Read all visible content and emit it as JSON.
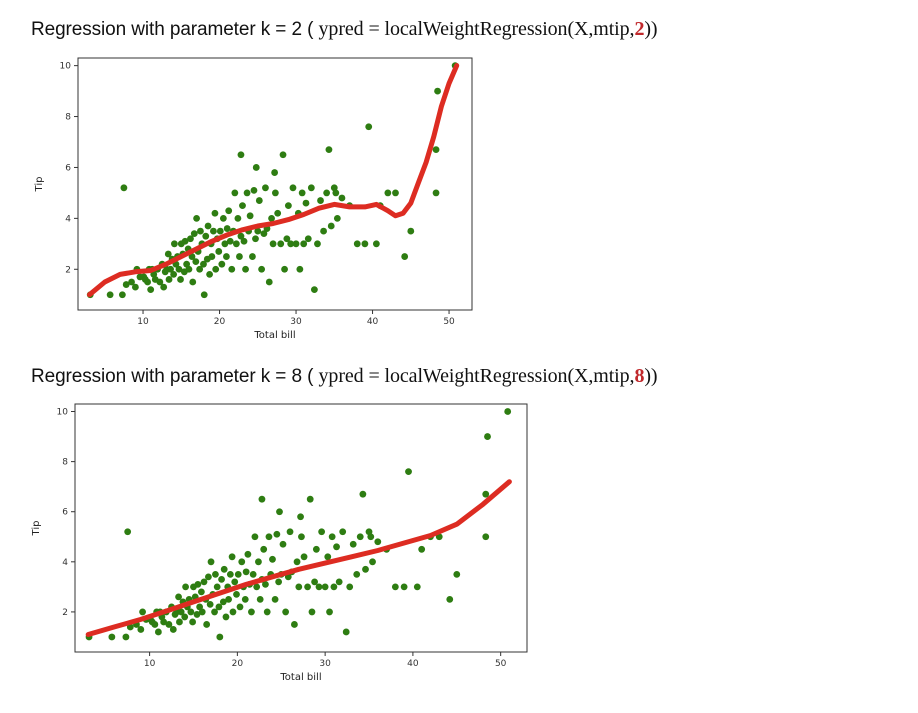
{
  "captions": [
    {
      "prefix": "Regression with parameter k = 2 ( ",
      "code_pre": "ypred = localWeightRegression(X,mtip,",
      "k": "2",
      "code_post": "))"
    },
    {
      "prefix": "Regression with parameter k = 8 ( ",
      "code_pre": "ypred = localWeightRegression(X,mtip,",
      "k": "8",
      "code_post": "))"
    }
  ],
  "colors": {
    "points": "#2e7d12",
    "curve": "#dd2c22",
    "axes": "#333333"
  },
  "chart_data": [
    {
      "type": "scatter",
      "title": "",
      "xlabel": "Total bill",
      "ylabel": "Tip",
      "xlim": [
        1.5,
        53
      ],
      "ylim": [
        0.4,
        10.3
      ],
      "xticks": [
        10,
        20,
        30,
        40,
        50
      ],
      "yticks": [
        2,
        4,
        6,
        8,
        10
      ],
      "grid": false,
      "points": [
        [
          3.1,
          1.0
        ],
        [
          5.7,
          1.0
        ],
        [
          7.3,
          1.0
        ],
        [
          7.5,
          5.2
        ],
        [
          7.8,
          1.4
        ],
        [
          8.5,
          1.5
        ],
        [
          9.0,
          1.3
        ],
        [
          9.2,
          2.0
        ],
        [
          9.6,
          1.7
        ],
        [
          10.1,
          1.7
        ],
        [
          10.3,
          1.6
        ],
        [
          10.6,
          1.5
        ],
        [
          10.8,
          2.0
        ],
        [
          11.0,
          1.2
        ],
        [
          11.2,
          2.0
        ],
        [
          11.4,
          1.8
        ],
        [
          11.6,
          1.6
        ],
        [
          11.9,
          2.0
        ],
        [
          12.2,
          1.5
        ],
        [
          12.5,
          2.2
        ],
        [
          12.7,
          1.3
        ],
        [
          12.9,
          1.9
        ],
        [
          13.1,
          2.0
        ],
        [
          13.3,
          2.6
        ],
        [
          13.4,
          1.6
        ],
        [
          13.6,
          2.0
        ],
        [
          13.8,
          2.4
        ],
        [
          14.0,
          1.8
        ],
        [
          14.1,
          3.0
        ],
        [
          14.3,
          2.2
        ],
        [
          14.5,
          2.5
        ],
        [
          14.7,
          2.0
        ],
        [
          14.9,
          1.6
        ],
        [
          15.0,
          3.0
        ],
        [
          15.2,
          2.6
        ],
        [
          15.4,
          1.9
        ],
        [
          15.5,
          3.1
        ],
        [
          15.7,
          2.2
        ],
        [
          15.9,
          2.8
        ],
        [
          16.0,
          2.0
        ],
        [
          16.2,
          3.2
        ],
        [
          16.4,
          2.5
        ],
        [
          16.5,
          1.5
        ],
        [
          16.7,
          3.4
        ],
        [
          16.9,
          2.3
        ],
        [
          17.0,
          4.0
        ],
        [
          17.2,
          2.7
        ],
        [
          17.4,
          2.0
        ],
        [
          17.5,
          3.5
        ],
        [
          17.7,
          3.0
        ],
        [
          17.9,
          2.2
        ],
        [
          18.0,
          1.0
        ],
        [
          18.2,
          3.3
        ],
        [
          18.4,
          2.4
        ],
        [
          18.5,
          3.7
        ],
        [
          18.7,
          1.8
        ],
        [
          18.9,
          3.0
        ],
        [
          19.0,
          2.5
        ],
        [
          19.2,
          3.5
        ],
        [
          19.4,
          4.2
        ],
        [
          19.5,
          2.0
        ],
        [
          19.7,
          3.2
        ],
        [
          19.9,
          2.7
        ],
        [
          20.1,
          3.5
        ],
        [
          20.3,
          2.2
        ],
        [
          20.5,
          4.0
        ],
        [
          20.7,
          3.0
        ],
        [
          20.9,
          2.5
        ],
        [
          21.0,
          3.6
        ],
        [
          21.2,
          4.3
        ],
        [
          21.4,
          3.1
        ],
        [
          21.6,
          2.0
        ],
        [
          21.8,
          3.5
        ],
        [
          22.0,
          5.0
        ],
        [
          22.2,
          3.0
        ],
        [
          22.4,
          4.0
        ],
        [
          22.6,
          2.5
        ],
        [
          22.8,
          3.3
        ],
        [
          23.0,
          4.5
        ],
        [
          23.2,
          3.1
        ],
        [
          23.4,
          2.0
        ],
        [
          23.6,
          5.0
        ],
        [
          23.8,
          3.5
        ],
        [
          24.0,
          4.1
        ],
        [
          24.3,
          2.5
        ],
        [
          24.5,
          5.1
        ],
        [
          24.7,
          3.2
        ],
        [
          25.0,
          3.5
        ],
        [
          25.2,
          4.7
        ],
        [
          25.5,
          2.0
        ],
        [
          25.8,
          3.4
        ],
        [
          26.0,
          5.2
        ],
        [
          26.2,
          3.6
        ],
        [
          26.5,
          1.5
        ],
        [
          26.8,
          4.0
        ],
        [
          27.0,
          3.0
        ],
        [
          27.3,
          5.0
        ],
        [
          27.6,
          4.2
        ],
        [
          28.0,
          3.0
        ],
        [
          28.3,
          6.5
        ],
        [
          28.5,
          2.0
        ],
        [
          28.8,
          3.2
        ],
        [
          29.0,
          4.5
        ],
        [
          29.3,
          3.0
        ],
        [
          29.6,
          5.2
        ],
        [
          30.0,
          3.0
        ],
        [
          30.3,
          4.2
        ],
        [
          30.5,
          2.0
        ],
        [
          30.8,
          5.0
        ],
        [
          31.0,
          3.0
        ],
        [
          31.3,
          4.6
        ],
        [
          31.6,
          3.2
        ],
        [
          32.0,
          5.2
        ],
        [
          32.4,
          1.2
        ],
        [
          32.8,
          3.0
        ],
        [
          33.2,
          4.7
        ],
        [
          33.6,
          3.5
        ],
        [
          34.0,
          5.0
        ],
        [
          34.3,
          6.7
        ],
        [
          34.6,
          3.7
        ],
        [
          35.0,
          5.2
        ],
        [
          35.4,
          4.0
        ],
        [
          36.0,
          4.8
        ],
        [
          37.0,
          4.5
        ],
        [
          38.0,
          3.0
        ],
        [
          39.0,
          3.0
        ],
        [
          39.5,
          7.6
        ],
        [
          40.5,
          3.0
        ],
        [
          41.0,
          4.5
        ],
        [
          42.0,
          5.0
        ],
        [
          43.0,
          5.0
        ],
        [
          44.2,
          2.5
        ],
        [
          45.0,
          3.5
        ],
        [
          48.3,
          6.7
        ],
        [
          48.3,
          5.0
        ],
        [
          48.5,
          9.0
        ],
        [
          50.8,
          10.0
        ],
        [
          24.8,
          6.0
        ],
        [
          22.8,
          6.5
        ],
        [
          27.2,
          5.8
        ],
        [
          35.2,
          5.0
        ]
      ],
      "curve": [
        [
          3,
          1.0
        ],
        [
          5,
          1.5
        ],
        [
          7,
          1.8
        ],
        [
          9,
          1.9
        ],
        [
          11,
          1.95
        ],
        [
          13,
          2.2
        ],
        [
          15,
          2.5
        ],
        [
          17,
          2.8
        ],
        [
          19,
          3.1
        ],
        [
          21,
          3.35
        ],
        [
          23,
          3.55
        ],
        [
          25,
          3.7
        ],
        [
          27,
          3.8
        ],
        [
          29,
          3.95
        ],
        [
          31,
          4.15
        ],
        [
          33,
          4.4
        ],
        [
          35,
          4.55
        ],
        [
          37,
          4.45
        ],
        [
          39,
          4.45
        ],
        [
          40.5,
          4.55
        ],
        [
          42,
          4.3
        ],
        [
          43,
          4.1
        ],
        [
          44,
          4.2
        ],
        [
          45,
          4.6
        ],
        [
          46,
          5.4
        ],
        [
          47,
          6.2
        ],
        [
          48,
          7.2
        ],
        [
          49,
          8.4
        ],
        [
          50,
          9.3
        ],
        [
          51,
          10.0
        ]
      ]
    },
    {
      "type": "scatter",
      "title": "",
      "xlabel": "Total bill",
      "ylabel": "Tip",
      "xlim": [
        1.5,
        53
      ],
      "ylim": [
        0.4,
        10.3
      ],
      "xticks": [
        10,
        20,
        30,
        40,
        50
      ],
      "yticks": [
        2,
        4,
        6,
        8,
        10
      ],
      "grid": false,
      "points": [
        [
          3.1,
          1.0
        ],
        [
          5.7,
          1.0
        ],
        [
          7.3,
          1.0
        ],
        [
          7.5,
          5.2
        ],
        [
          7.8,
          1.4
        ],
        [
          8.5,
          1.5
        ],
        [
          9.0,
          1.3
        ],
        [
          9.2,
          2.0
        ],
        [
          9.6,
          1.7
        ],
        [
          10.1,
          1.7
        ],
        [
          10.3,
          1.6
        ],
        [
          10.6,
          1.5
        ],
        [
          10.8,
          2.0
        ],
        [
          11.0,
          1.2
        ],
        [
          11.2,
          2.0
        ],
        [
          11.4,
          1.8
        ],
        [
          11.6,
          1.6
        ],
        [
          11.9,
          2.0
        ],
        [
          12.2,
          1.5
        ],
        [
          12.5,
          2.2
        ],
        [
          12.7,
          1.3
        ],
        [
          12.9,
          1.9
        ],
        [
          13.1,
          2.0
        ],
        [
          13.3,
          2.6
        ],
        [
          13.4,
          1.6
        ],
        [
          13.6,
          2.0
        ],
        [
          13.8,
          2.4
        ],
        [
          14.0,
          1.8
        ],
        [
          14.1,
          3.0
        ],
        [
          14.3,
          2.2
        ],
        [
          14.5,
          2.5
        ],
        [
          14.7,
          2.0
        ],
        [
          14.9,
          1.6
        ],
        [
          15.0,
          3.0
        ],
        [
          15.2,
          2.6
        ],
        [
          15.4,
          1.9
        ],
        [
          15.5,
          3.1
        ],
        [
          15.7,
          2.2
        ],
        [
          15.9,
          2.8
        ],
        [
          16.0,
          2.0
        ],
        [
          16.2,
          3.2
        ],
        [
          16.4,
          2.5
        ],
        [
          16.5,
          1.5
        ],
        [
          16.7,
          3.4
        ],
        [
          16.9,
          2.3
        ],
        [
          17.0,
          4.0
        ],
        [
          17.2,
          2.7
        ],
        [
          17.4,
          2.0
        ],
        [
          17.5,
          3.5
        ],
        [
          17.7,
          3.0
        ],
        [
          17.9,
          2.2
        ],
        [
          18.0,
          1.0
        ],
        [
          18.2,
          3.3
        ],
        [
          18.4,
          2.4
        ],
        [
          18.5,
          3.7
        ],
        [
          18.7,
          1.8
        ],
        [
          18.9,
          3.0
        ],
        [
          19.0,
          2.5
        ],
        [
          19.2,
          3.5
        ],
        [
          19.4,
          4.2
        ],
        [
          19.5,
          2.0
        ],
        [
          19.7,
          3.2
        ],
        [
          19.9,
          2.7
        ],
        [
          20.1,
          3.5
        ],
        [
          20.3,
          2.2
        ],
        [
          20.5,
          4.0
        ],
        [
          20.7,
          3.0
        ],
        [
          20.9,
          2.5
        ],
        [
          21.0,
          3.6
        ],
        [
          21.2,
          4.3
        ],
        [
          21.4,
          3.1
        ],
        [
          21.6,
          2.0
        ],
        [
          21.8,
          3.5
        ],
        [
          22.0,
          5.0
        ],
        [
          22.2,
          3.0
        ],
        [
          22.4,
          4.0
        ],
        [
          22.6,
          2.5
        ],
        [
          22.8,
          3.3
        ],
        [
          23.0,
          4.5
        ],
        [
          23.2,
          3.1
        ],
        [
          23.4,
          2.0
        ],
        [
          23.6,
          5.0
        ],
        [
          23.8,
          3.5
        ],
        [
          24.0,
          4.1
        ],
        [
          24.3,
          2.5
        ],
        [
          24.5,
          5.1
        ],
        [
          24.7,
          3.2
        ],
        [
          25.0,
          3.5
        ],
        [
          25.2,
          4.7
        ],
        [
          25.5,
          2.0
        ],
        [
          25.8,
          3.4
        ],
        [
          26.0,
          5.2
        ],
        [
          26.2,
          3.6
        ],
        [
          26.5,
          1.5
        ],
        [
          26.8,
          4.0
        ],
        [
          27.0,
          3.0
        ],
        [
          27.3,
          5.0
        ],
        [
          27.6,
          4.2
        ],
        [
          28.0,
          3.0
        ],
        [
          28.3,
          6.5
        ],
        [
          28.5,
          2.0
        ],
        [
          28.8,
          3.2
        ],
        [
          29.0,
          4.5
        ],
        [
          29.3,
          3.0
        ],
        [
          29.6,
          5.2
        ],
        [
          30.0,
          3.0
        ],
        [
          30.3,
          4.2
        ],
        [
          30.5,
          2.0
        ],
        [
          30.8,
          5.0
        ],
        [
          31.0,
          3.0
        ],
        [
          31.3,
          4.6
        ],
        [
          31.6,
          3.2
        ],
        [
          32.0,
          5.2
        ],
        [
          32.4,
          1.2
        ],
        [
          32.8,
          3.0
        ],
        [
          33.2,
          4.7
        ],
        [
          33.6,
          3.5
        ],
        [
          34.0,
          5.0
        ],
        [
          34.3,
          6.7
        ],
        [
          34.6,
          3.7
        ],
        [
          35.0,
          5.2
        ],
        [
          35.4,
          4.0
        ],
        [
          36.0,
          4.8
        ],
        [
          37.0,
          4.5
        ],
        [
          38.0,
          3.0
        ],
        [
          39.0,
          3.0
        ],
        [
          39.5,
          7.6
        ],
        [
          40.5,
          3.0
        ],
        [
          41.0,
          4.5
        ],
        [
          42.0,
          5.0
        ],
        [
          43.0,
          5.0
        ],
        [
          44.2,
          2.5
        ],
        [
          45.0,
          3.5
        ],
        [
          48.3,
          6.7
        ],
        [
          48.3,
          5.0
        ],
        [
          48.5,
          9.0
        ],
        [
          50.8,
          10.0
        ],
        [
          24.8,
          6.0
        ],
        [
          22.8,
          6.5
        ],
        [
          27.2,
          5.8
        ],
        [
          35.2,
          5.0
        ]
      ],
      "curve": [
        [
          3,
          1.1
        ],
        [
          6,
          1.4
        ],
        [
          9,
          1.7
        ],
        [
          12,
          2.05
        ],
        [
          15,
          2.4
        ],
        [
          18,
          2.75
        ],
        [
          21,
          3.1
        ],
        [
          24,
          3.4
        ],
        [
          27,
          3.7
        ],
        [
          30,
          3.95
        ],
        [
          33,
          4.2
        ],
        [
          36,
          4.45
        ],
        [
          39,
          4.75
        ],
        [
          42,
          5.05
        ],
        [
          45,
          5.5
        ],
        [
          48,
          6.3
        ],
        [
          51,
          7.2
        ]
      ]
    }
  ]
}
